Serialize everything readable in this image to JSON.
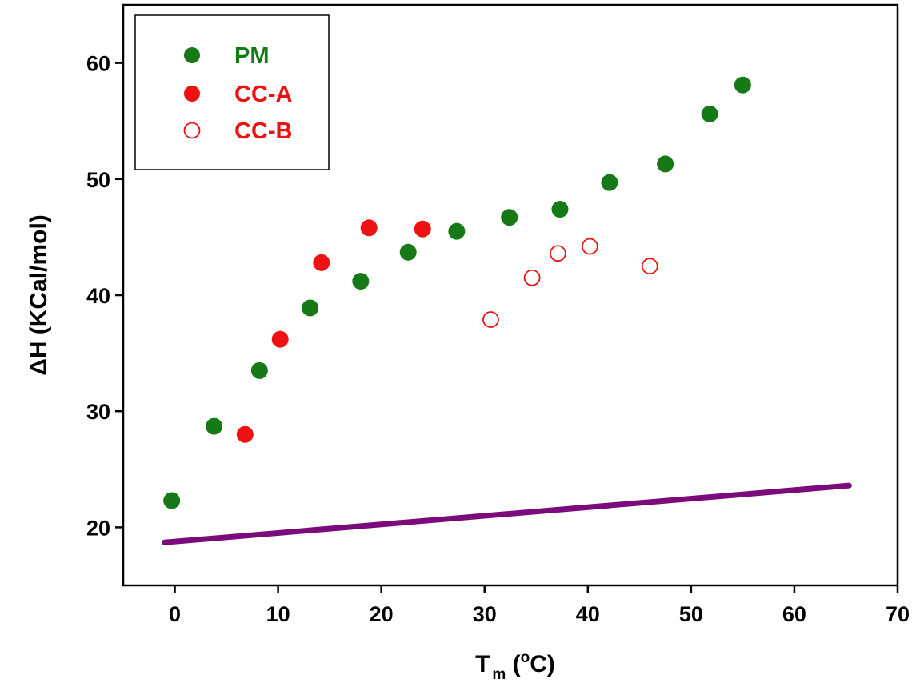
{
  "chart_data": {
    "type": "scatter",
    "xlabel": {
      "main": "T",
      "sub": "m",
      "open": " (",
      "sup": "o",
      "unit": "C)"
    },
    "ylabel": "ΔH (KCal/mol)",
    "xlim": [
      -5,
      70
    ],
    "ylim": [
      15,
      65
    ],
    "xticks": [
      "0",
      "10",
      "20",
      "30",
      "40",
      "50",
      "60",
      "70"
    ],
    "yticks": [
      "20",
      "30",
      "40",
      "50",
      "60"
    ],
    "legend_position": "top-left",
    "series": [
      {
        "name": "PM",
        "marker": "filled-circle",
        "color": "#157a15",
        "points": [
          [
            -0.3,
            22.3
          ],
          [
            3.8,
            28.7
          ],
          [
            8.2,
            33.5
          ],
          [
            13.1,
            38.9
          ],
          [
            18.0,
            41.2
          ],
          [
            22.6,
            43.7
          ],
          [
            27.3,
            45.5
          ],
          [
            32.4,
            46.7
          ],
          [
            37.3,
            47.4
          ],
          [
            42.1,
            49.7
          ],
          [
            47.5,
            51.3
          ],
          [
            51.8,
            55.6
          ],
          [
            55.0,
            58.1
          ]
        ]
      },
      {
        "name": "CC-A",
        "marker": "filled-circle",
        "color": "#ee1111",
        "points": [
          [
            6.8,
            28.0
          ],
          [
            10.2,
            36.2
          ],
          [
            14.2,
            42.8
          ],
          [
            18.8,
            45.8
          ],
          [
            24.0,
            45.7
          ]
        ]
      },
      {
        "name": "CC-B",
        "marker": "open-circle",
        "color": "#ee1111",
        "points": [
          [
            30.6,
            37.9
          ],
          [
            34.6,
            41.5
          ],
          [
            37.1,
            43.6
          ],
          [
            40.2,
            44.2
          ],
          [
            46.0,
            42.5
          ]
        ]
      }
    ],
    "lines": [
      {
        "color": "#7b0a7b",
        "points": [
          [
            -1.0,
            18.7
          ],
          [
            65.3,
            23.6
          ]
        ]
      }
    ]
  }
}
